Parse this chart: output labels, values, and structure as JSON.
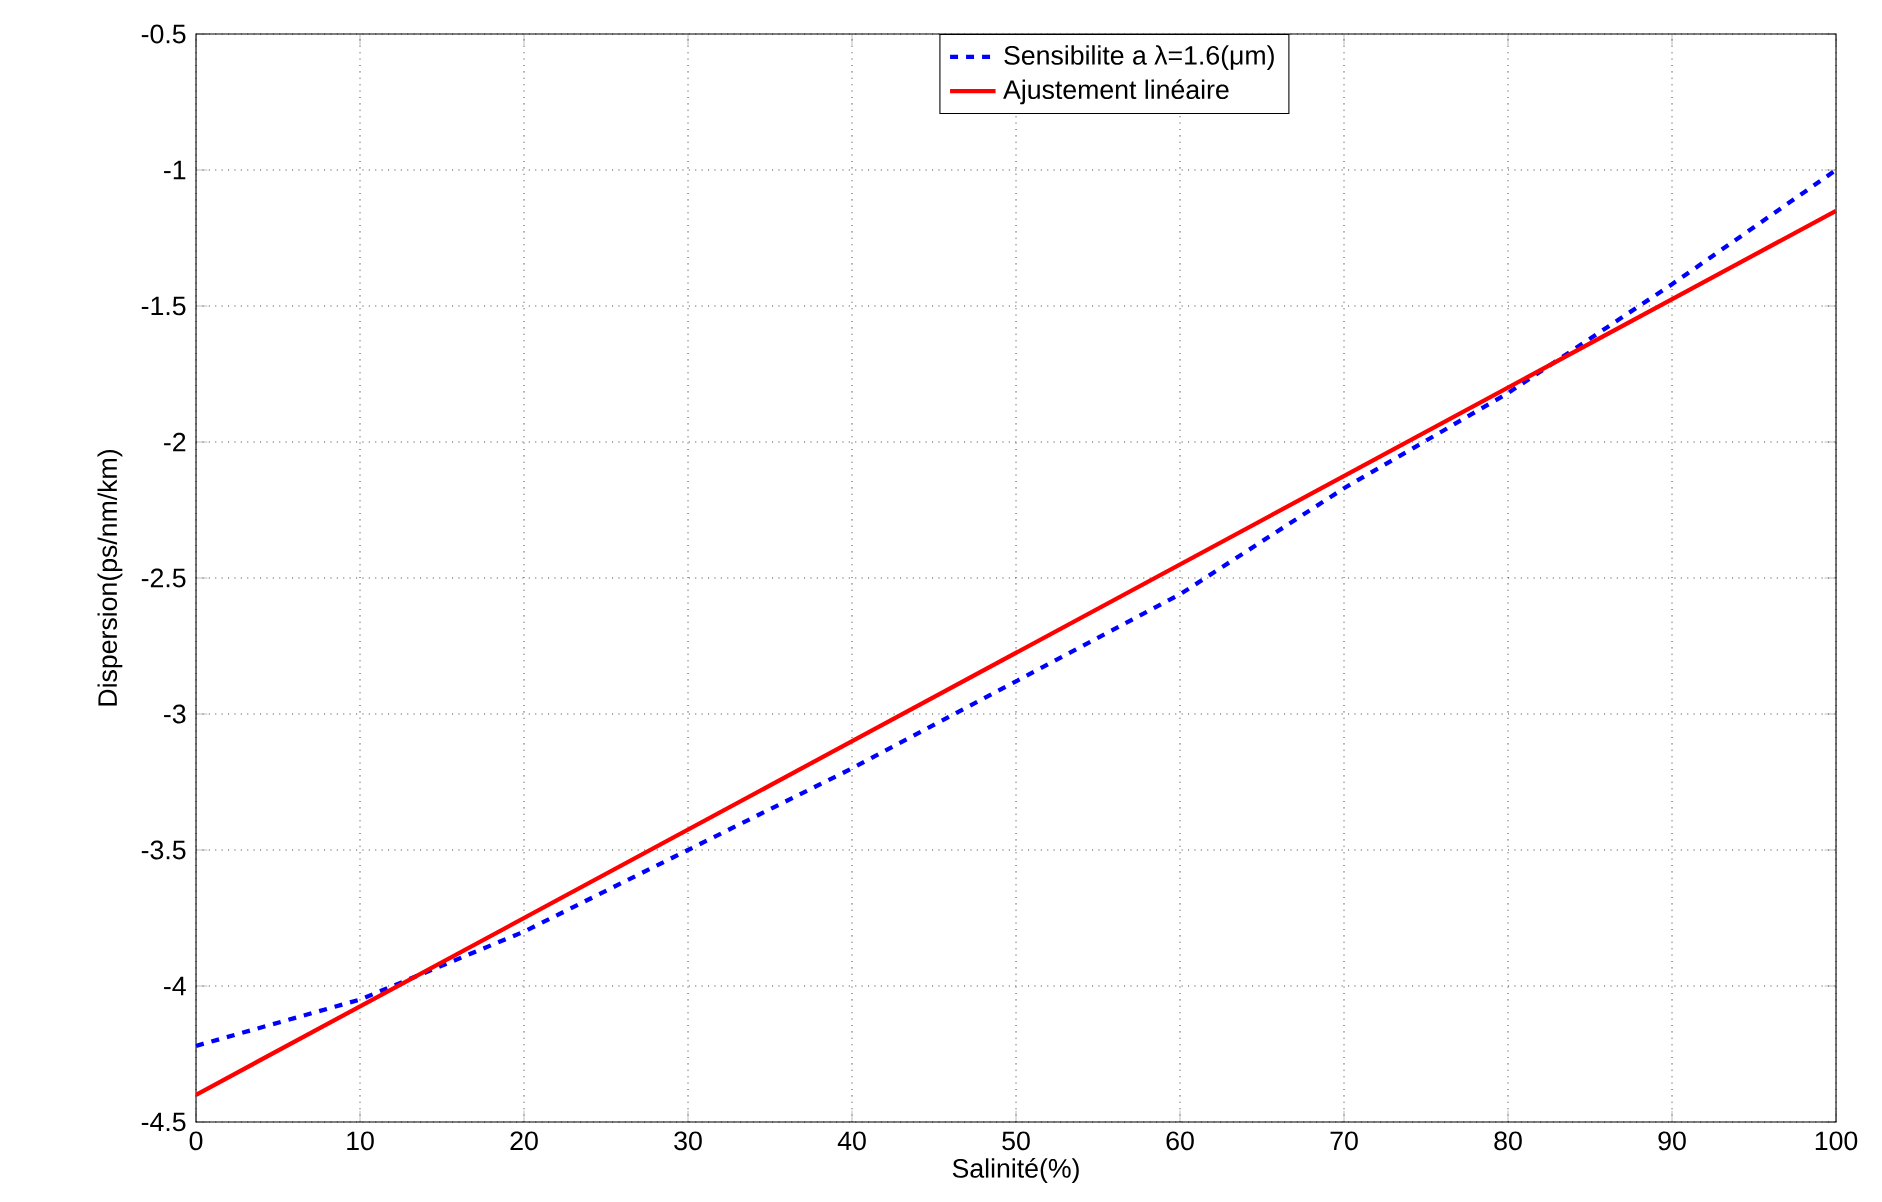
{
  "chart_data": {
    "type": "line",
    "xlabel": "Salinité(%)",
    "ylabel": "Dispersion(ps/nm/km)",
    "x": [
      0,
      10,
      20,
      30,
      40,
      50,
      60,
      70,
      80,
      90,
      100
    ],
    "series": [
      {
        "name": "Sensibilite a λ=1.6(μm)",
        "color": "#0000ff",
        "line_style": "dashed",
        "values": [
          -4.22,
          -4.05,
          -3.8,
          -3.5,
          -3.2,
          -2.88,
          -2.56,
          -2.17,
          -1.82,
          -1.42,
          -1.0
        ]
      },
      {
        "name": "Ajustement linéaire",
        "color": "#ff0000",
        "line_style": "solid",
        "x": [
          0,
          100
        ],
        "values": [
          -4.4,
          -1.15
        ]
      }
    ],
    "xlim": [
      0,
      100
    ],
    "ylim": [
      -4.5,
      -0.5
    ],
    "xticks": [
      0,
      10,
      20,
      30,
      40,
      50,
      60,
      70,
      80,
      90,
      100
    ],
    "yticks": [
      -4.5,
      -4,
      -3.5,
      -3,
      -2.5,
      -2,
      -1.5,
      -1,
      -0.5
    ],
    "grid": true,
    "legend": "top"
  }
}
